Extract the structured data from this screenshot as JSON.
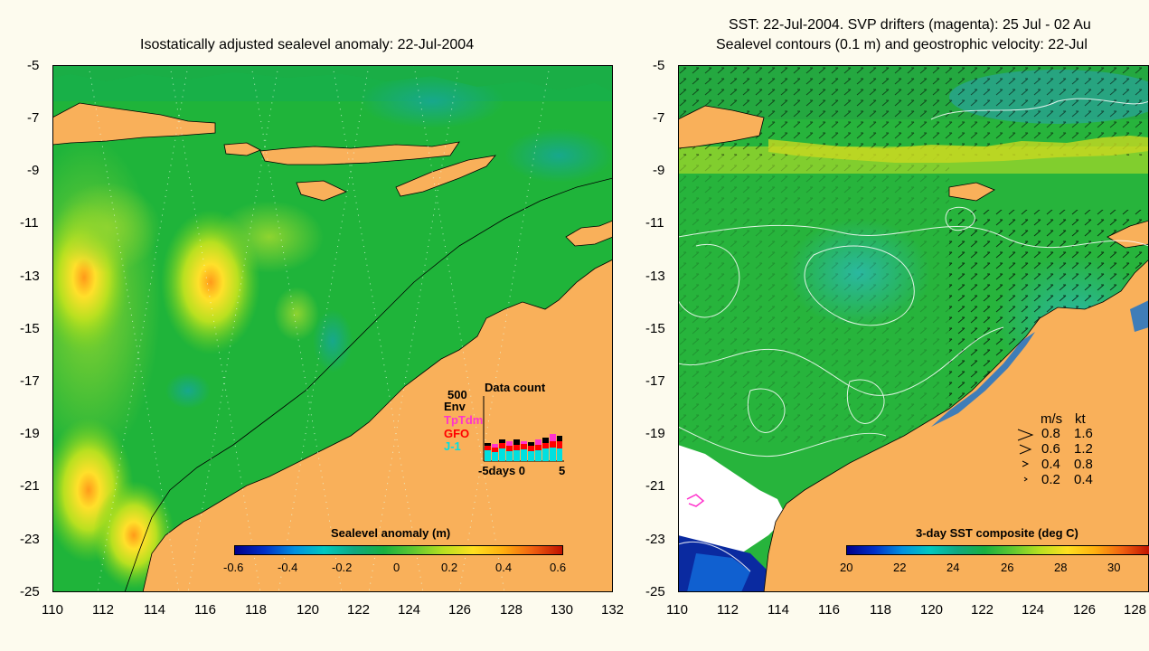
{
  "left": {
    "title": "Isostatically adjusted sealevel anomaly: 22-Jul-2004",
    "xticks": [
      "110",
      "112",
      "114",
      "116",
      "118",
      "120",
      "122",
      "124",
      "126",
      "128",
      "130",
      "132"
    ],
    "yticks": [
      "-5",
      "-7",
      "-9",
      "-11",
      "-13",
      "-15",
      "-17",
      "-19",
      "-21",
      "-23",
      "-25"
    ],
    "colorbar": {
      "label": "Sealevel anomaly (m)",
      "ticks": [
        "-0.6",
        "-0.4",
        "-0.2",
        "0",
        "0.2",
        "0.4",
        "0.6"
      ]
    },
    "data_count": {
      "title": "Data count",
      "max": "500",
      "legend": [
        {
          "name": "Env",
          "color": "#000000"
        },
        {
          "name": "TpTdm",
          "color": "#ff33cc"
        },
        {
          "name": "GFO",
          "color": "#ff0000"
        },
        {
          "name": "J-1",
          "color": "#00e0e0"
        }
      ],
      "xlabel": "-5days 0",
      "xend": "5"
    }
  },
  "right": {
    "title_line1": "SST: 22-Jul-2004. SVP drifters (magenta): 25 Jul - 02 Au",
    "title_line2": "Sealevel contours (0.1 m) and geostrophic velocity: 22-Jul",
    "xticks": [
      "110",
      "112",
      "114",
      "116",
      "118",
      "120",
      "122",
      "124",
      "126",
      "128"
    ],
    "yticks": [
      "-5",
      "-7",
      "-9",
      "-11",
      "-13",
      "-15",
      "-17",
      "-19",
      "-21",
      "-23",
      "-25"
    ],
    "colorbar": {
      "label": "3-day SST composite (deg C)",
      "ticks": [
        "20",
        "22",
        "24",
        "26",
        "28",
        "30"
      ]
    },
    "velocity_legend": {
      "header_ms": "m/s",
      "header_kt": "kt",
      "rows": [
        {
          "ms": "0.8",
          "kt": "1.6"
        },
        {
          "ms": "0.6",
          "kt": "1.2"
        },
        {
          "ms": "0.4",
          "kt": "0.8"
        },
        {
          "ms": "0.2",
          "kt": "0.4"
        }
      ]
    }
  },
  "colors": {
    "land": "#f9b05a",
    "ocean_green": "#18b040",
    "background": "#fdfbee"
  }
}
